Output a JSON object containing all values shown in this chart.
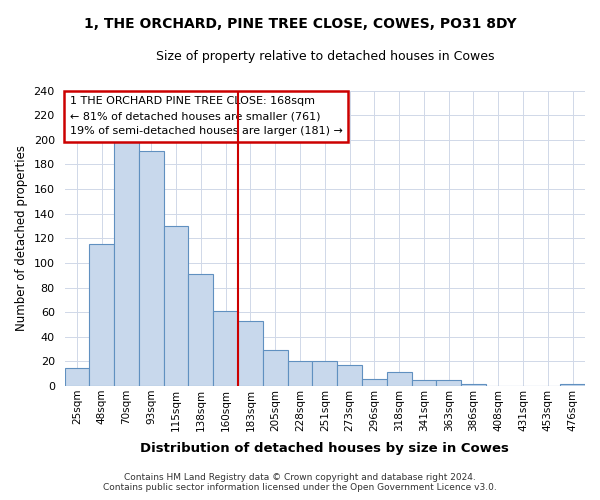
{
  "title": "1, THE ORCHARD, PINE TREE CLOSE, COWES, PO31 8DY",
  "subtitle": "Size of property relative to detached houses in Cowes",
  "xlabel": "Distribution of detached houses by size in Cowes",
  "ylabel": "Number of detached properties",
  "bar_labels": [
    "25sqm",
    "48sqm",
    "70sqm",
    "93sqm",
    "115sqm",
    "138sqm",
    "160sqm",
    "183sqm",
    "205sqm",
    "228sqm",
    "251sqm",
    "273sqm",
    "296sqm",
    "318sqm",
    "341sqm",
    "363sqm",
    "386sqm",
    "408sqm",
    "431sqm",
    "453sqm",
    "476sqm"
  ],
  "bar_values": [
    15,
    115,
    198,
    191,
    130,
    91,
    61,
    53,
    29,
    20,
    20,
    17,
    6,
    11,
    5,
    5,
    2,
    0,
    0,
    0,
    2
  ],
  "bar_color": "#c8d8ec",
  "bar_edge_color": "#6090c0",
  "highlight_index": 6,
  "highlight_line_color": "#cc0000",
  "annotation_text": "1 THE ORCHARD PINE TREE CLOSE: 168sqm\n← 81% of detached houses are smaller (761)\n19% of semi-detached houses are larger (181) →",
  "annotation_box_color": "#ffffff",
  "annotation_border_color": "#cc0000",
  "ylim": [
    0,
    240
  ],
  "yticks": [
    0,
    20,
    40,
    60,
    80,
    100,
    120,
    140,
    160,
    180,
    200,
    220,
    240
  ],
  "footer_line1": "Contains HM Land Registry data © Crown copyright and database right 2024.",
  "footer_line2": "Contains public sector information licensed under the Open Government Licence v3.0.",
  "background_color": "#ffffff",
  "plot_background_color": "#ffffff",
  "grid_color": "#d0d8e8"
}
